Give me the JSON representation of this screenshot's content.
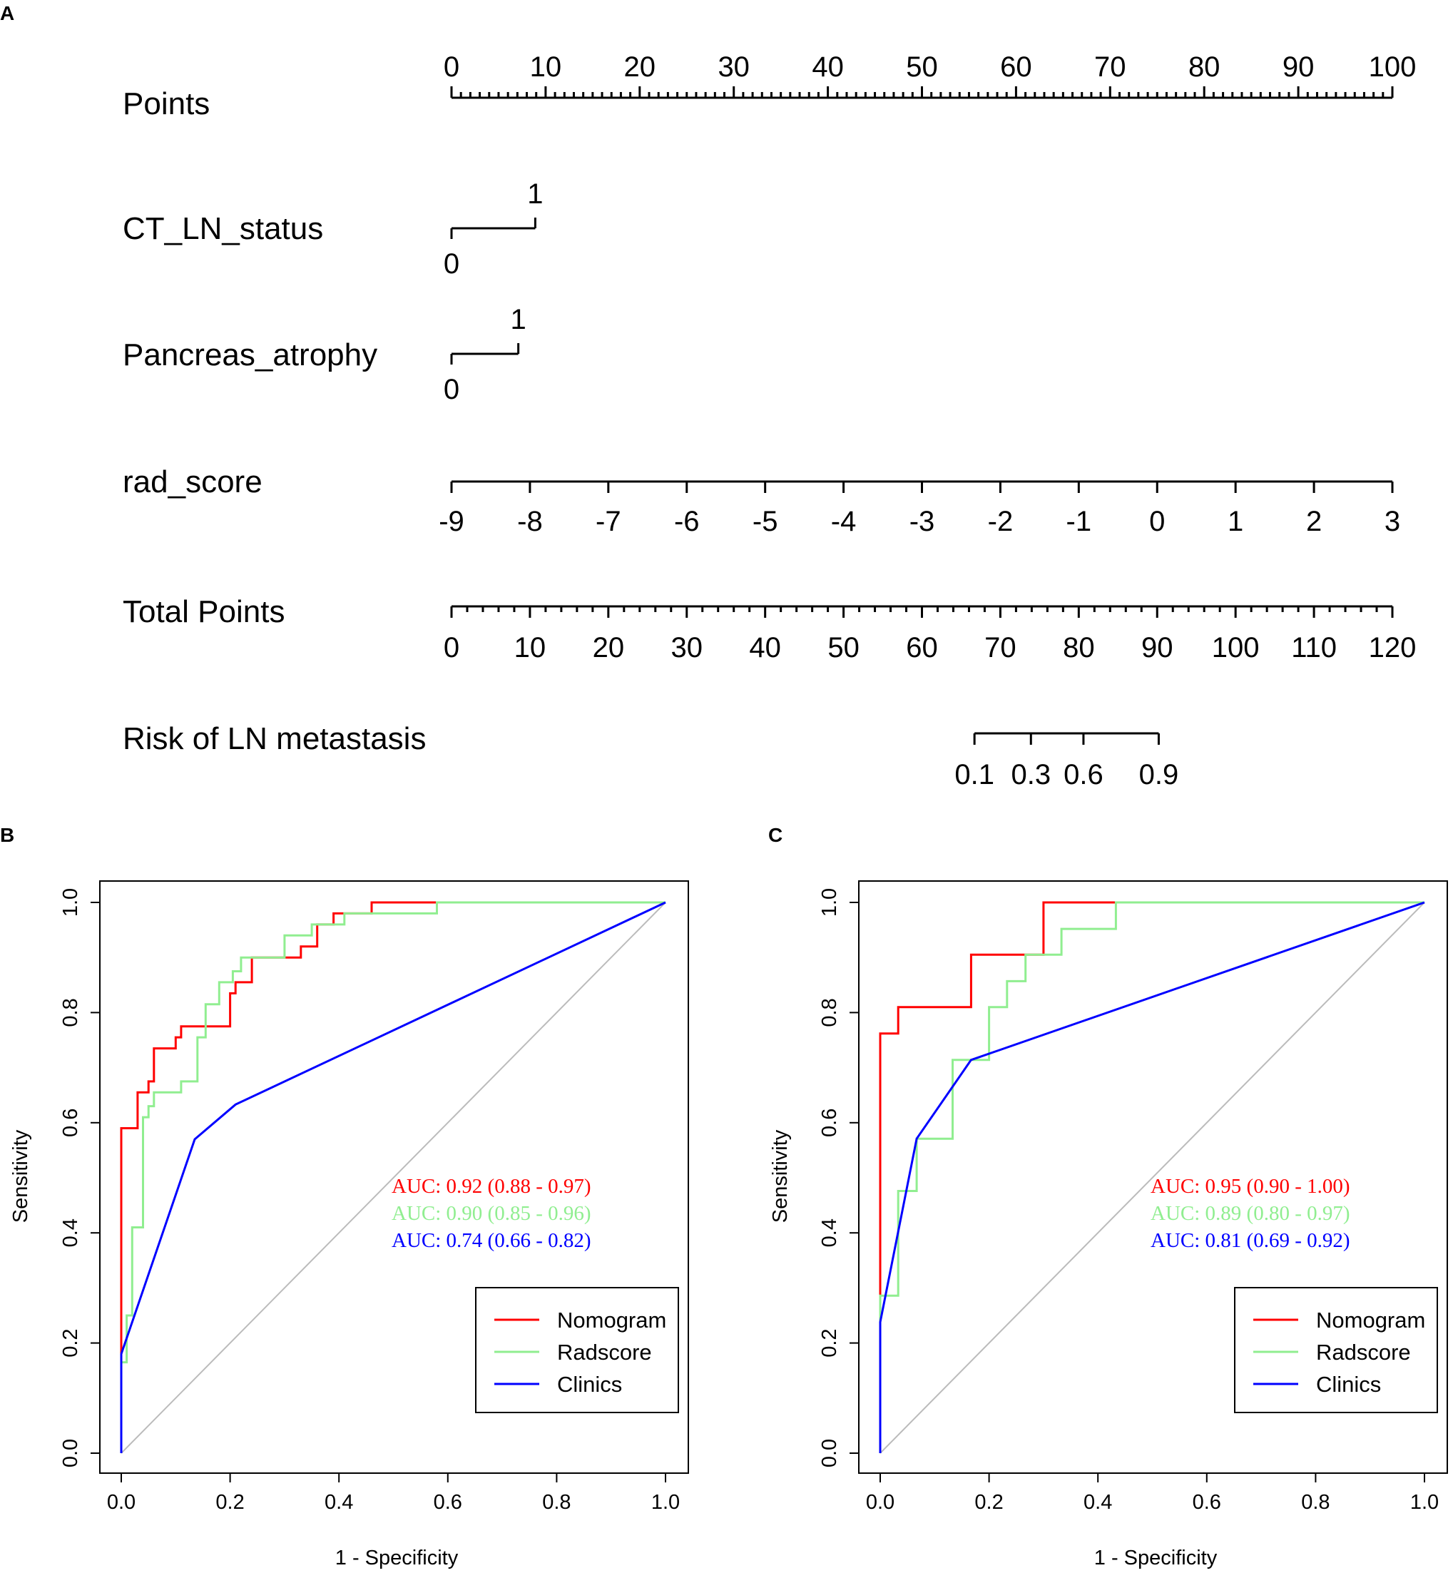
{
  "chart_data": [
    {
      "panel": "A",
      "type": "nomogram",
      "rows": [
        {
          "label": "Points",
          "kind": "points",
          "min": 0,
          "max": 100,
          "tick_labels": [
            "0",
            "10",
            "20",
            "30",
            "40",
            "50",
            "60",
            "70",
            "80",
            "90",
            "100"
          ]
        },
        {
          "label": "CT_LN_status",
          "kind": "categorical",
          "levels": [
            {
              "label": "0",
              "points": 0
            },
            {
              "label": "1",
              "points": 8.9
            }
          ]
        },
        {
          "label": "Pancreas_atrophy",
          "kind": "categorical",
          "levels": [
            {
              "label": "0",
              "points": 0
            },
            {
              "label": "1",
              "points": 7.1
            }
          ]
        },
        {
          "label": "rad_score",
          "kind": "continuous",
          "min": -9,
          "max": 3,
          "tick_labels": [
            "-9",
            "-8",
            "-7",
            "-6",
            "-5",
            "-4",
            "-3",
            "-2",
            "-1",
            "0",
            "1",
            "2",
            "3"
          ]
        },
        {
          "label": "Total Points",
          "kind": "total",
          "min": 0,
          "max": 120,
          "tick_labels": [
            "0",
            "10",
            "20",
            "30",
            "40",
            "50",
            "60",
            "70",
            "80",
            "90",
            "100",
            "110",
            "120"
          ]
        },
        {
          "label": "Risk of LN metastasis",
          "kind": "risk",
          "ticks": [
            {
              "label": "0.1",
              "total_points": 66.7
            },
            {
              "label": "0.3",
              "total_points": 73.9
            },
            {
              "label": "0.6",
              "total_points": 80.6
            },
            {
              "label": "0.9",
              "total_points": 90.2
            }
          ]
        }
      ]
    },
    {
      "panel": "B",
      "type": "line",
      "xlabel": "1 - Specificity",
      "ylabel": "Sensitivity",
      "xlim": [
        0,
        1
      ],
      "ylim": [
        0,
        1
      ],
      "tick_labels": [
        "0.0",
        "0.2",
        "0.4",
        "0.6",
        "0.8",
        "1.0"
      ],
      "auc_labels": [
        {
          "text": "AUC: 0.92 (0.88 - 0.97)",
          "color": "#ff0000"
        },
        {
          "text": "AUC: 0.90 (0.85 - 0.96)",
          "color": "#90ee90"
        },
        {
          "text": "AUC: 0.74 (0.66 - 0.82)",
          "color": "#0000ff"
        }
      ],
      "legend": {
        "placement": "bottom-right",
        "entries": [
          "Nomogram",
          "Radscore",
          "Clinics"
        ]
      },
      "series": [
        {
          "name": "Nomogram",
          "color": "#ff0000",
          "points": [
            [
              0,
              0
            ],
            [
              0,
              0.59
            ],
            [
              0.03,
              0.59
            ],
            [
              0.03,
              0.655
            ],
            [
              0.05,
              0.655
            ],
            [
              0.05,
              0.675
            ],
            [
              0.06,
              0.675
            ],
            [
              0.06,
              0.735
            ],
            [
              0.1,
              0.735
            ],
            [
              0.1,
              0.755
            ],
            [
              0.11,
              0.755
            ],
            [
              0.11,
              0.775
            ],
            [
              0.2,
              0.775
            ],
            [
              0.2,
              0.835
            ],
            [
              0.21,
              0.835
            ],
            [
              0.21,
              0.855
            ],
            [
              0.24,
              0.855
            ],
            [
              0.24,
              0.9
            ],
            [
              0.33,
              0.9
            ],
            [
              0.33,
              0.92
            ],
            [
              0.36,
              0.92
            ],
            [
              0.36,
              0.96
            ],
            [
              0.39,
              0.96
            ],
            [
              0.39,
              0.98
            ],
            [
              0.46,
              0.98
            ],
            [
              0.46,
              1.0
            ],
            [
              1,
              1
            ]
          ]
        },
        {
          "name": "Radscore",
          "color": "#90ee90",
          "points": [
            [
              0,
              0
            ],
            [
              0,
              0.165
            ],
            [
              0.01,
              0.165
            ],
            [
              0.01,
              0.25
            ],
            [
              0.02,
              0.25
            ],
            [
              0.02,
              0.41
            ],
            [
              0.04,
              0.41
            ],
            [
              0.04,
              0.61
            ],
            [
              0.05,
              0.61
            ],
            [
              0.05,
              0.63
            ],
            [
              0.06,
              0.63
            ],
            [
              0.06,
              0.655
            ],
            [
              0.11,
              0.655
            ],
            [
              0.11,
              0.675
            ],
            [
              0.14,
              0.675
            ],
            [
              0.14,
              0.755
            ],
            [
              0.155,
              0.755
            ],
            [
              0.155,
              0.815
            ],
            [
              0.18,
              0.815
            ],
            [
              0.18,
              0.855
            ],
            [
              0.205,
              0.855
            ],
            [
              0.205,
              0.875
            ],
            [
              0.22,
              0.875
            ],
            [
              0.22,
              0.9
            ],
            [
              0.3,
              0.9
            ],
            [
              0.3,
              0.94
            ],
            [
              0.35,
              0.94
            ],
            [
              0.35,
              0.96
            ],
            [
              0.41,
              0.96
            ],
            [
              0.41,
              0.98
            ],
            [
              0.58,
              0.98
            ],
            [
              0.58,
              1.0
            ],
            [
              1,
              1
            ]
          ]
        },
        {
          "name": "Clinics",
          "color": "#0000ff",
          "points": [
            [
              0,
              0
            ],
            [
              0,
              0.18
            ],
            [
              0.135,
              0.57
            ],
            [
              0.21,
              0.633
            ],
            [
              1,
              1
            ]
          ]
        }
      ]
    },
    {
      "panel": "C",
      "type": "line",
      "xlabel": "1 - Specificity",
      "ylabel": "Sensitivity",
      "xlim": [
        0,
        1
      ],
      "ylim": [
        0,
        1
      ],
      "tick_labels": [
        "0.0",
        "0.2",
        "0.4",
        "0.6",
        "0.8",
        "1.0"
      ],
      "auc_labels": [
        {
          "text": "AUC: 0.95 (0.90 - 1.00)",
          "color": "#ff0000"
        },
        {
          "text": "AUC: 0.89 (0.80 - 0.97)",
          "color": "#90ee90"
        },
        {
          "text": "AUC: 0.81 (0.69 - 0.92)",
          "color": "#0000ff"
        }
      ],
      "legend": {
        "placement": "bottom-right",
        "entries": [
          "Nomogram",
          "Radscore",
          "Clinics"
        ]
      },
      "series": [
        {
          "name": "Nomogram",
          "color": "#ff0000",
          "points": [
            [
              0,
              0
            ],
            [
              0,
              0.762
            ],
            [
              0.033,
              0.762
            ],
            [
              0.033,
              0.81
            ],
            [
              0.167,
              0.81
            ],
            [
              0.167,
              0.905
            ],
            [
              0.3,
              0.905
            ],
            [
              0.3,
              1.0
            ],
            [
              1,
              1
            ]
          ]
        },
        {
          "name": "Radscore",
          "color": "#90ee90",
          "points": [
            [
              0,
              0
            ],
            [
              0,
              0.286
            ],
            [
              0.033,
              0.286
            ],
            [
              0.033,
              0.476
            ],
            [
              0.067,
              0.476
            ],
            [
              0.067,
              0.571
            ],
            [
              0.133,
              0.571
            ],
            [
              0.133,
              0.714
            ],
            [
              0.2,
              0.714
            ],
            [
              0.2,
              0.81
            ],
            [
              0.233,
              0.81
            ],
            [
              0.233,
              0.857
            ],
            [
              0.267,
              0.857
            ],
            [
              0.267,
              0.905
            ],
            [
              0.333,
              0.905
            ],
            [
              0.333,
              0.952
            ],
            [
              0.433,
              0.952
            ],
            [
              0.433,
              1.0
            ],
            [
              1,
              1
            ]
          ]
        },
        {
          "name": "Clinics",
          "color": "#0000ff",
          "points": [
            [
              0,
              0
            ],
            [
              0,
              0.238
            ],
            [
              0.067,
              0.571
            ],
            [
              0.167,
              0.714
            ],
            [
              1,
              1
            ]
          ]
        }
      ]
    }
  ]
}
